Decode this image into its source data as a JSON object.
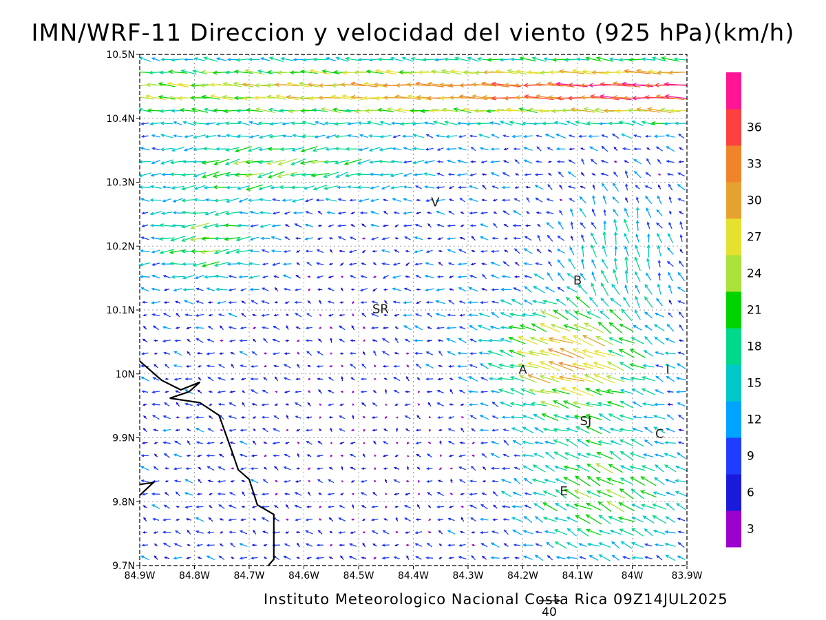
{
  "title": "IMN/WRF-11 Direccion y velocidad del viento (925 hPa)(km/h)",
  "footer": "Instituto Meteorologico Nacional Costa Rica 09Z14JUL2025",
  "chart_data": {
    "type": "vector_field",
    "variable": "wind at 925 hPa",
    "units": "km/h",
    "x_ticks": [
      "84.9W",
      "84.8W",
      "84.7W",
      "84.6W",
      "84.5W",
      "84.4W",
      "84.3W",
      "84.2W",
      "84.1W",
      "84W",
      "83.9W"
    ],
    "y_ticks": [
      "10.5N",
      "10.4N",
      "10.3N",
      "10.2N",
      "10.1N",
      "10N",
      "9.9N",
      "9.8N",
      "9.7N"
    ],
    "lon_range": [
      -84.9,
      -83.9
    ],
    "lat_range": [
      9.7,
      10.5
    ],
    "grid": true,
    "reference_vector": {
      "label": "40",
      "value": 40
    },
    "colorbar": {
      "labels": [
        "3",
        "6",
        "9",
        "12",
        "15",
        "18",
        "21",
        "24",
        "27",
        "30",
        "33",
        "36"
      ],
      "colors": [
        "#9b00cc",
        "#1a1adb",
        "#1f3dff",
        "#00a3ff",
        "#00c8c8",
        "#00d98a",
        "#00d400",
        "#a8e23a",
        "#e6e030",
        "#e6a22e",
        "#f0842a",
        "#ff4040",
        "#ff1493"
      ]
    },
    "places": [
      {
        "label": "V",
        "lon": -84.36,
        "lat": 10.262
      },
      {
        "label": "SR",
        "lon": -84.46,
        "lat": 10.095
      },
      {
        "label": "B",
        "lon": -84.1,
        "lat": 10.14
      },
      {
        "label": "A",
        "lon": -84.2,
        "lat": 10.0
      },
      {
        "label": "I",
        "lon": -83.935,
        "lat": 10.0
      },
      {
        "label": "SJ",
        "lon": -84.085,
        "lat": 9.92
      },
      {
        "label": "C",
        "lon": -83.95,
        "lat": 9.9
      },
      {
        "label": "E",
        "lon": -84.125,
        "lat": 9.81
      }
    ],
    "coastline": [
      [
        -84.9,
        10.02
      ],
      [
        -84.86,
        9.99
      ],
      [
        -84.825,
        9.975
      ],
      [
        -84.79,
        9.987
      ],
      [
        -84.81,
        9.972
      ],
      [
        -84.845,
        9.962
      ],
      [
        -84.79,
        9.955
      ],
      [
        -84.755,
        9.935
      ],
      [
        -84.73,
        9.875
      ],
      [
        -84.72,
        9.85
      ],
      [
        -84.7,
        9.835
      ],
      [
        -84.685,
        9.795
      ],
      [
        -84.655,
        9.78
      ],
      [
        -84.655,
        9.71
      ],
      [
        -84.665,
        9.7
      ]
    ],
    "coastline2": [
      [
        -84.9,
        9.81
      ],
      [
        -84.875,
        9.83
      ],
      [
        -84.9,
        9.827
      ]
    ]
  }
}
